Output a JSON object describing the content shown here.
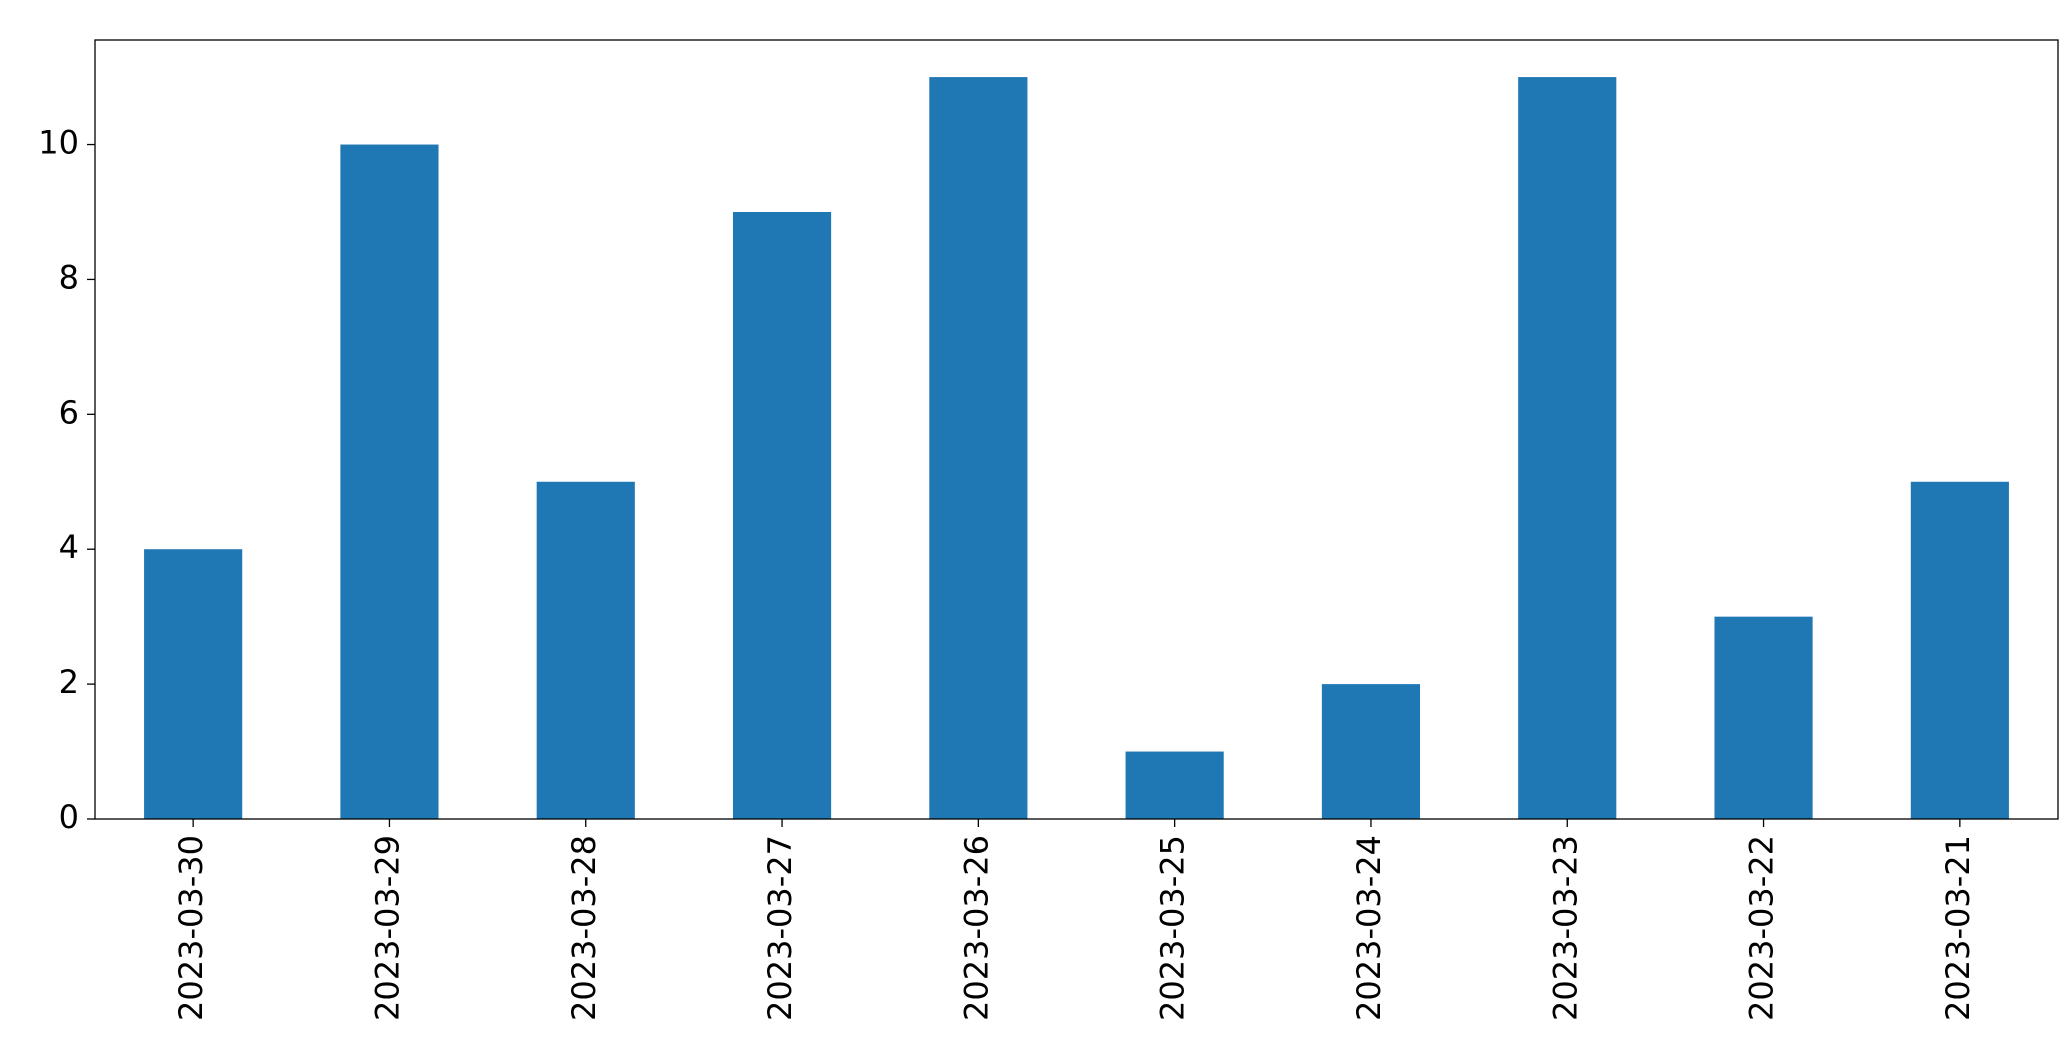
{
  "chart_data": {
    "type": "bar",
    "categories": [
      "2023-03-30",
      "2023-03-29",
      "2023-03-28",
      "2023-03-27",
      "2023-03-26",
      "2023-03-25",
      "2023-03-24",
      "2023-03-23",
      "2023-03-22",
      "2023-03-21"
    ],
    "values": [
      4,
      10,
      5,
      9,
      11,
      1,
      2,
      11,
      3,
      5
    ],
    "color": "#1f77b4",
    "ylim": [
      0,
      11.55
    ],
    "yticks": [
      0,
      2,
      4,
      6,
      8,
      10
    ],
    "grid": false
  }
}
